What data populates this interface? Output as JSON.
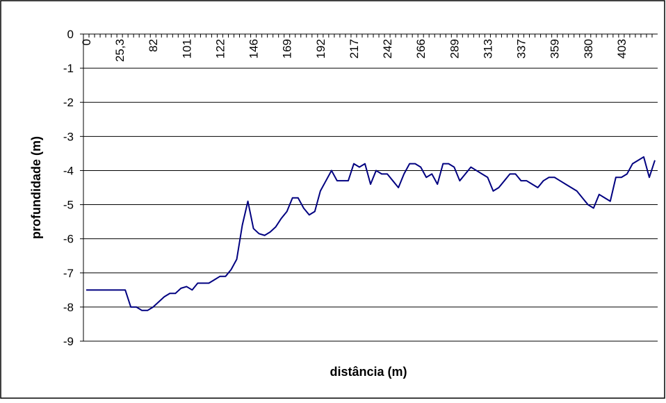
{
  "chart_data": {
    "type": "line",
    "x_label": "distância (m)",
    "y_label": "profundidade (m)",
    "categories": [
      "0",
      null,
      null,
      null,
      null,
      null,
      "25,3",
      null,
      null,
      null,
      null,
      null,
      "82",
      null,
      null,
      null,
      null,
      null,
      "101",
      null,
      null,
      null,
      null,
      null,
      "122",
      null,
      null,
      null,
      null,
      null,
      "146",
      null,
      null,
      null,
      null,
      null,
      "169",
      null,
      null,
      null,
      null,
      null,
      "192",
      null,
      null,
      null,
      null,
      null,
      "217",
      null,
      null,
      null,
      null,
      null,
      "242",
      null,
      null,
      null,
      null,
      null,
      "266",
      null,
      null,
      null,
      null,
      null,
      "289",
      null,
      null,
      null,
      null,
      null,
      "313",
      null,
      null,
      null,
      null,
      null,
      "337",
      null,
      null,
      null,
      null,
      null,
      "359",
      null,
      null,
      null,
      null,
      null,
      "380",
      null,
      null,
      null,
      null,
      null,
      "403",
      null,
      null,
      null,
      null,
      null,
      null
    ],
    "values": [
      -7.5,
      -7.5,
      -7.5,
      -7.5,
      -7.5,
      -7.5,
      -7.5,
      -7.5,
      -8,
      -8,
      -8.1,
      -8.1,
      -8,
      -7.85,
      -7.7,
      -7.6,
      -7.6,
      -7.45,
      -7.4,
      -7.5,
      -7.3,
      -7.3,
      -7.3,
      -7.2,
      -7.1,
      -7.1,
      -6.9,
      -6.6,
      -5.6,
      -4.9,
      -5.7,
      -5.85,
      -5.9,
      -5.8,
      -5.65,
      -5.4,
      -5.2,
      -4.8,
      -4.8,
      -5.1,
      -5.3,
      -5.2,
      -4.6,
      -4.3,
      -4.0,
      -4.3,
      -4.3,
      -4.3,
      -3.8,
      -3.9,
      -3.8,
      -4.4,
      -4.0,
      -4.1,
      -4.1,
      -4.3,
      -4.5,
      -4.1,
      -3.8,
      -3.8,
      -3.9,
      -4.2,
      -4.1,
      -4.4,
      -3.8,
      -3.8,
      -3.9,
      -4.3,
      -4.1,
      -3.9,
      -4.0,
      -4.1,
      -4.2,
      -4.6,
      -4.5,
      -4.3,
      -4.1,
      -4.1,
      -4.3,
      -4.3,
      -4.4,
      -4.5,
      -4.3,
      -4.2,
      -4.2,
      -4.3,
      -4.4,
      -4.5,
      -4.6,
      -4.8,
      -5.0,
      -5.1,
      -4.7,
      -4.8,
      -4.9,
      -4.2,
      -4.2,
      -4.1,
      -3.8,
      -3.7,
      -3.6,
      -4.2,
      -3.7
    ],
    "color": "#000080",
    "ylim": [
      -9,
      0
    ],
    "yticks": [
      0,
      -1,
      -2,
      -3,
      -4,
      -5,
      -6,
      -7,
      -8,
      -9
    ],
    "grid": true
  }
}
